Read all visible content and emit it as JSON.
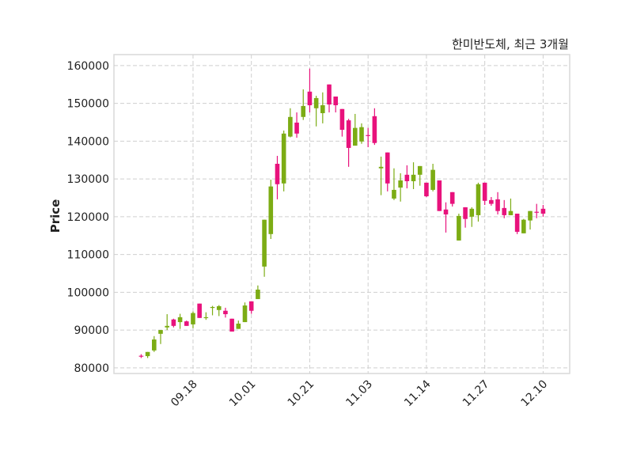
{
  "chart_data": {
    "type": "candlestick",
    "title": "한미반도체, 최근 3개월",
    "ylabel": "Price",
    "xlabel": "",
    "ylim": [
      78500,
      162900
    ],
    "yticks": [
      80000,
      90000,
      100000,
      110000,
      120000,
      130000,
      140000,
      150000,
      160000
    ],
    "xticks": [
      {
        "index": 8,
        "label": "09.18"
      },
      {
        "index": 17,
        "label": "10.01"
      },
      {
        "index": 26,
        "label": "10.21"
      },
      {
        "index": 35,
        "label": "11.03"
      },
      {
        "index": 44,
        "label": "11.14"
      },
      {
        "index": 53,
        "label": "11.27"
      },
      {
        "index": 62,
        "label": "12.10"
      }
    ],
    "grid": true,
    "colors": {
      "up": "#7cac14",
      "down": "#e8127c",
      "grid": "#cfcfcf",
      "frame": "#d9d9d9"
    },
    "ohlc_fields": [
      "open",
      "high",
      "low",
      "close"
    ],
    "candles": [
      [
        83200,
        83600,
        82600,
        83000
      ],
      [
        83100,
        84200,
        82600,
        84200
      ],
      [
        84600,
        88400,
        84200,
        87500
      ],
      [
        89000,
        90000,
        86300,
        90000
      ],
      [
        90700,
        94200,
        90000,
        91100
      ],
      [
        92800,
        93000,
        90700,
        91100
      ],
      [
        92100,
        94300,
        90300,
        93400
      ],
      [
        92300,
        92500,
        91100,
        91100
      ],
      [
        91500,
        94900,
        90500,
        94500
      ],
      [
        97000,
        97000,
        93200,
        93200
      ],
      [
        93300,
        94700,
        92700,
        93400
      ],
      [
        95900,
        96400,
        93900,
        96100
      ],
      [
        95300,
        96600,
        93700,
        96300
      ],
      [
        95100,
        95900,
        93300,
        94200
      ],
      [
        93000,
        93000,
        89600,
        89600
      ],
      [
        90300,
        92500,
        90300,
        91700
      ],
      [
        92100,
        97300,
        92100,
        96500
      ],
      [
        97600,
        97600,
        94300,
        95100
      ],
      [
        98200,
        101800,
        98200,
        100700
      ],
      [
        106800,
        119200,
        104100,
        119200
      ],
      [
        115400,
        129800,
        114100,
        128000
      ],
      [
        134000,
        136100,
        124600,
        128600
      ],
      [
        128800,
        142800,
        126700,
        142000
      ],
      [
        141200,
        148700,
        141000,
        146400
      ],
      [
        144900,
        147600,
        140900,
        142000
      ],
      [
        146400,
        153700,
        145600,
        149300
      ],
      [
        153100,
        159200,
        147600,
        149500
      ],
      [
        148700,
        152000,
        143900,
        151400
      ],
      [
        147400,
        152900,
        144700,
        149500
      ],
      [
        155000,
        155000,
        147600,
        149700
      ],
      [
        151800,
        151800,
        147600,
        149500
      ],
      [
        148500,
        148500,
        141200,
        143000
      ],
      [
        145500,
        145900,
        133200,
        138200
      ],
      [
        138800,
        147200,
        138800,
        143500
      ],
      [
        139900,
        144700,
        139300,
        143700
      ],
      [
        141600,
        143500,
        138400,
        141400
      ],
      [
        146600,
        148700,
        139000,
        139500
      ],
      [
        132800,
        135900,
        125700,
        133200
      ],
      [
        137000,
        137000,
        126700,
        128800
      ],
      [
        124800,
        132800,
        124400,
        127100
      ],
      [
        127700,
        131500,
        124000,
        129600
      ],
      [
        131100,
        133600,
        127500,
        129400
      ],
      [
        129400,
        134400,
        127300,
        131100
      ],
      [
        131100,
        133400,
        128200,
        133400
      ],
      [
        129000,
        129000,
        125200,
        125400
      ],
      [
        127100,
        134000,
        126700,
        132400
      ],
      [
        129600,
        129600,
        121500,
        121500
      ],
      [
        121900,
        123800,
        115800,
        120600
      ],
      [
        126500,
        126500,
        122700,
        123400
      ],
      [
        113700,
        120800,
        113700,
        120200
      ],
      [
        122500,
        122500,
        117100,
        119400
      ],
      [
        120000,
        122500,
        117300,
        122100
      ],
      [
        120400,
        129000,
        118700,
        128600
      ],
      [
        129000,
        129000,
        123100,
        124200
      ],
      [
        124400,
        125200,
        122900,
        123400
      ],
      [
        124600,
        126500,
        120600,
        121500
      ],
      [
        122300,
        124400,
        119600,
        120400
      ],
      [
        120400,
        124800,
        120400,
        121500
      ],
      [
        120800,
        120800,
        115400,
        116000
      ],
      [
        115600,
        119400,
        115600,
        119200
      ],
      [
        119000,
        121500,
        116600,
        121500
      ],
      [
        121300,
        123400,
        119600,
        121100
      ],
      [
        122100,
        123100,
        120000,
        120800
      ]
    ]
  }
}
